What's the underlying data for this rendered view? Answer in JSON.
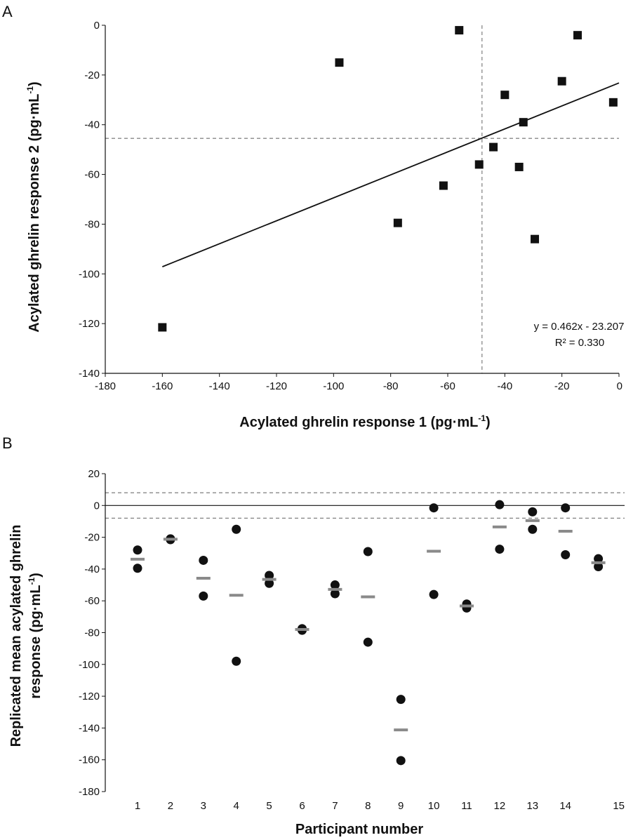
{
  "chart_data": [
    {
      "panel": "A",
      "type": "scatter",
      "xlabel_main": "Acylated ghrelin response 1 (pg·mL",
      "xlabel_sup": "-1",
      "xlabel_end": ")",
      "ylabel_main": "Acylated ghrelin response 2 (pg·mL",
      "ylabel_sup": "-1",
      "ylabel_end": ")",
      "xlim": [
        -180,
        0
      ],
      "ylim": [
        -140,
        0
      ],
      "xticks": [
        -180,
        -160,
        -140,
        -120,
        -100,
        -80,
        -60,
        -40,
        -20,
        0
      ],
      "yticks": [
        0,
        -20,
        -40,
        -60,
        -80,
        -100,
        -120,
        -140
      ],
      "points": [
        {
          "x": -160,
          "y": -121.5
        },
        {
          "x": -98,
          "y": -15
        },
        {
          "x": -77.5,
          "y": -79.5
        },
        {
          "x": -61.5,
          "y": -64.5
        },
        {
          "x": -56,
          "y": -2
        },
        {
          "x": -49,
          "y": -56
        },
        {
          "x": -44,
          "y": -49
        },
        {
          "x": -40,
          "y": -28
        },
        {
          "x": -35,
          "y": -57
        },
        {
          "x": -33.5,
          "y": -39
        },
        {
          "x": -29.5,
          "y": -86
        },
        {
          "x": -20,
          "y": -22.5
        },
        {
          "x": -14.5,
          "y": -4
        },
        {
          "x": -2,
          "y": -31
        }
      ],
      "trendline": {
        "slope": 0.462,
        "intercept": -23.207,
        "x_range": [
          -160,
          0
        ]
      },
      "reference_lines": {
        "x": -48,
        "y": -45.5
      },
      "equation_text": "y = 0.462x - 23.207",
      "r2_text": "R² = 0.330"
    },
    {
      "panel": "B",
      "type": "scatter",
      "xlabel": "Participant number",
      "ylabel_line1": "Replicated mean acylated ghrelin",
      "ylabel_line2_main": "response (pg·mL",
      "ylabel_line2_sup": "-1",
      "ylabel_line2_end": ")",
      "ylim": [
        -180,
        20
      ],
      "yticks": [
        20,
        0,
        -20,
        -40,
        -60,
        -80,
        -100,
        -120,
        -140,
        -160,
        -180
      ],
      "categories": [
        "1",
        "2",
        "3",
        "4",
        "5",
        "6",
        "7",
        "8",
        "9",
        "10",
        "11",
        "12",
        "13",
        "14",
        "15"
      ],
      "responses": [
        [
          -28,
          -39.5
        ],
        [
          -21,
          -21.5
        ],
        [
          -34.5,
          -57
        ],
        [
          -15,
          -98
        ],
        [
          -44,
          -49
        ],
        [
          -77.5,
          -78.5
        ],
        [
          -50,
          -55.5
        ],
        [
          -29,
          -86
        ],
        [
          -122,
          -160.5
        ],
        [
          -1.5,
          -56
        ],
        [
          -62,
          -64.5
        ],
        [
          0.5,
          -27.5
        ],
        [
          -4,
          -15
        ],
        [
          -1.5,
          -31
        ],
        [
          -33.5,
          -38.5
        ]
      ],
      "means": [
        -33.8,
        -21.2,
        -45.8,
        -56.5,
        -46.5,
        -78,
        -52.8,
        -57.5,
        -141.2,
        -28.8,
        -63.2,
        -13.5,
        -9.5,
        -16.2,
        -36
      ],
      "reference_lines": [
        8,
        -8
      ],
      "zero_line": 0
    }
  ]
}
